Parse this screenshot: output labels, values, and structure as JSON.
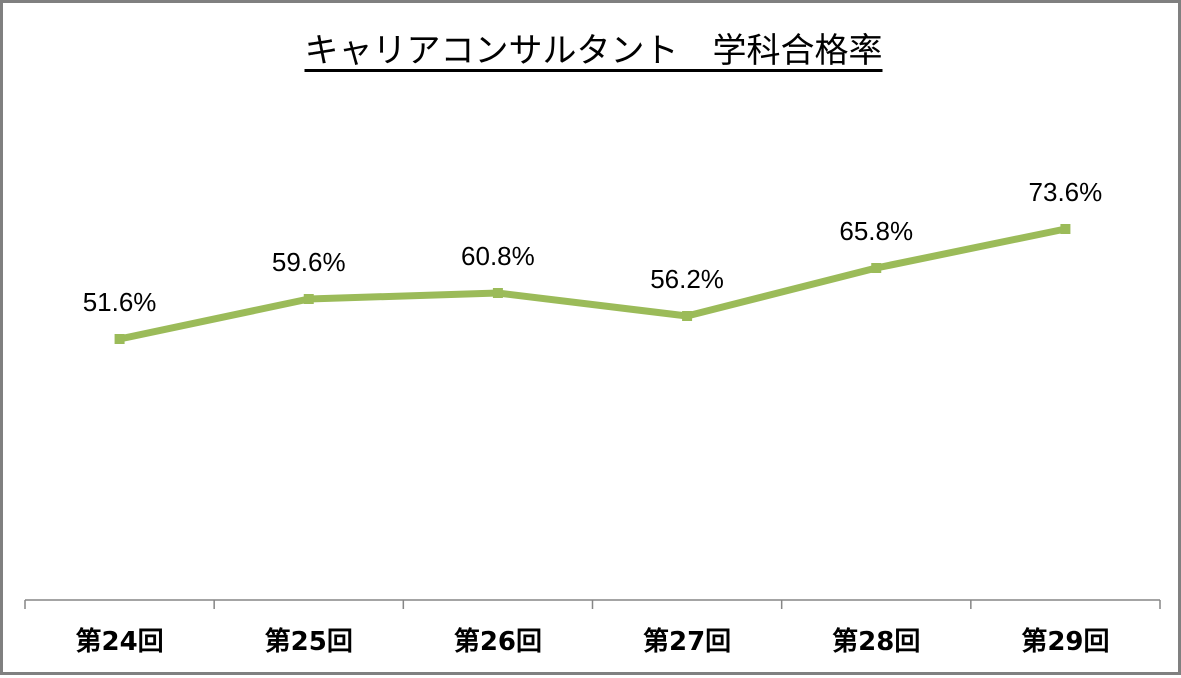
{
  "chart_data": {
    "type": "line",
    "title": "キャリアコンサルタント　学科合格率",
    "xlabel": "",
    "ylabel": "",
    "categories": [
      "第24回",
      "第25回",
      "第26回",
      "第27回",
      "第28回",
      "第29回"
    ],
    "series": [
      {
        "name": "学科合格率",
        "values": [
          51.6,
          59.6,
          60.8,
          56.2,
          65.8,
          73.6
        ],
        "labels": [
          "51.6%",
          "59.6%",
          "60.8%",
          "56.2%",
          "65.8%",
          "73.6%"
        ],
        "color": "#9BBB59"
      }
    ],
    "grid": false,
    "legend": "none",
    "y_axis_visible": false
  },
  "colors": {
    "line": "#9BBB59",
    "axis": "#868686",
    "border": "#808080"
  }
}
